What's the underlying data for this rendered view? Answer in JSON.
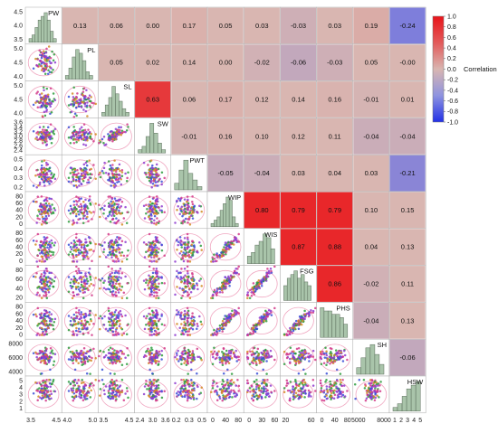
{
  "chart_data": {
    "type": "scatter-matrix",
    "variables": [
      "PW",
      "PL",
      "SL",
      "SW",
      "PWT",
      "WIP",
      "WIS",
      "FSG",
      "PHS",
      "SH",
      "HSW"
    ],
    "correlations": [
      [
        null,
        0.13,
        0.06,
        0.0,
        0.17,
        0.05,
        0.03,
        -0.03,
        0.03,
        0.19,
        -0.24
      ],
      [
        null,
        null,
        0.05,
        0.02,
        0.14,
        0.0,
        -0.02,
        -0.06,
        -0.03,
        0.05,
        -0.0
      ],
      [
        null,
        null,
        null,
        0.63,
        0.06,
        0.17,
        0.12,
        0.14,
        0.16,
        -0.01,
        0.01
      ],
      [
        null,
        null,
        null,
        null,
        -0.01,
        0.16,
        0.1,
        0.12,
        0.11,
        -0.04,
        -0.04
      ],
      [
        null,
        null,
        null,
        null,
        null,
        -0.05,
        -0.04,
        0.03,
        0.04,
        0.03,
        -0.21
      ],
      [
        null,
        null,
        null,
        null,
        null,
        null,
        0.8,
        0.79,
        0.79,
        0.1,
        0.15
      ],
      [
        null,
        null,
        null,
        null,
        null,
        null,
        null,
        0.87,
        0.88,
        0.04,
        0.13
      ],
      [
        null,
        null,
        null,
        null,
        null,
        null,
        null,
        null,
        0.86,
        -0.02,
        0.11
      ],
      [
        null,
        null,
        null,
        null,
        null,
        null,
        null,
        null,
        null,
        -0.04,
        0.13
      ],
      [
        null,
        null,
        null,
        null,
        null,
        null,
        null,
        null,
        null,
        null,
        -0.06
      ]
    ],
    "correlation_labels": [
      [
        null,
        "0.13",
        "0.06",
        "0.00",
        "0.17",
        "0.05",
        "0.03",
        "-0.03",
        "0.03",
        "0.19",
        "-0.24"
      ],
      [
        null,
        null,
        "0.05",
        "0.02",
        "0.14",
        "0.00",
        "-0.02",
        "-0.06",
        "-0.03",
        "0.05",
        "-0.00"
      ],
      [
        null,
        null,
        null,
        "0.63",
        "0.06",
        "0.17",
        "0.12",
        "0.14",
        "0.16",
        "-0.01",
        "0.01"
      ],
      [
        null,
        null,
        null,
        null,
        "-0.01",
        "0.16",
        "0.10",
        "0.12",
        "0.11",
        "-0.04",
        "-0.04"
      ],
      [
        null,
        null,
        null,
        null,
        null,
        "-0.05",
        "-0.04",
        "0.03",
        "0.04",
        "0.03",
        "-0.21"
      ],
      [
        null,
        null,
        null,
        null,
        null,
        null,
        "0.80",
        "0.79",
        "0.79",
        "0.10",
        "0.15"
      ],
      [
        null,
        null,
        null,
        null,
        null,
        null,
        null,
        "0.87",
        "0.88",
        "0.04",
        "0.13"
      ],
      [
        null,
        null,
        null,
        null,
        null,
        null,
        null,
        null,
        "0.86",
        "-0.02",
        "0.11"
      ],
      [
        null,
        null,
        null,
        null,
        null,
        null,
        null,
        null,
        null,
        "-0.04",
        "0.13"
      ],
      [
        null,
        null,
        null,
        null,
        null,
        null,
        null,
        null,
        null,
        null,
        "-0.06"
      ]
    ],
    "ranges": {
      "PW": [
        3.3,
        5.2
      ],
      "PL": [
        3.5,
        5.3
      ],
      "SL": [
        3.6,
        5.2
      ],
      "SW": [
        2.3,
        3.8
      ],
      "PWT": [
        0.15,
        0.5
      ],
      "WIP": [
        -5,
        90
      ],
      "WIS": [
        -5,
        80
      ],
      "FSG": [
        5,
        100
      ],
      "PHS": [
        -5,
        95
      ],
      "SH": [
        3000,
        9500
      ],
      "HSW": [
        0.5,
        5.5
      ]
    },
    "y_ticks": [
      [
        "4.5",
        "4.0",
        "3.5"
      ],
      [
        "5.0",
        "4.5",
        "4.0"
      ],
      [
        "5.0",
        "4.5",
        "4.0"
      ],
      [
        "3.6",
        "3.4",
        "3.2",
        "3.0",
        "2.8",
        "2.6",
        "2.4"
      ],
      [
        "0.5",
        "0.4",
        "0.3",
        "0.2"
      ],
      [
        "80",
        "60",
        "40",
        "20",
        "0"
      ],
      [
        "80",
        "60",
        "40",
        "20",
        "0"
      ],
      [
        "80",
        "60",
        "40",
        "20"
      ],
      [
        "80",
        "60",
        "40",
        "20",
        "0"
      ],
      [
        "8000",
        "6000",
        "4000"
      ],
      [
        "5",
        "4",
        "3",
        "2",
        "1"
      ]
    ],
    "x_ticks": [
      [
        "3.5",
        "4.5"
      ],
      [
        "4.0",
        "5.0"
      ],
      [
        "3.5",
        "4.5"
      ],
      [
        "2.4",
        "3.0",
        "3.6"
      ],
      [
        "0.2",
        "0.3",
        "0.5"
      ],
      [
        "0",
        "40",
        "80"
      ],
      [
        "0",
        "30",
        "60"
      ],
      [
        "20",
        "60"
      ],
      [
        "0",
        "40",
        "80"
      ],
      [
        "5000",
        "8000"
      ],
      [
        "1",
        "2",
        "3",
        "4",
        "5"
      ]
    ],
    "diag_hist": [
      [
        1,
        2,
        4,
        6,
        7,
        8,
        6,
        3,
        1
      ],
      [
        1,
        3,
        6,
        8,
        7,
        5,
        2,
        1
      ],
      [
        1,
        3,
        5,
        8,
        6,
        4,
        2,
        1
      ],
      [
        1,
        2,
        5,
        9,
        6,
        3,
        1
      ],
      [
        2,
        6,
        9,
        5,
        3,
        1
      ],
      [
        1,
        2,
        3,
        5,
        7,
        9,
        8,
        3,
        1
      ],
      [
        2,
        3,
        5,
        6,
        8,
        7,
        4
      ],
      [
        4,
        6,
        7,
        8,
        6,
        7,
        5,
        4
      ],
      [
        9,
        8,
        8,
        7,
        7,
        6,
        4
      ],
      [
        2,
        5,
        8,
        9,
        6,
        3
      ],
      [
        1,
        2,
        4,
        6,
        7,
        8
      ]
    ],
    "colorbar": {
      "title": "Correlation",
      "range": [
        -1.0,
        1.0
      ],
      "tick_labels": [
        "1.0",
        "0.8",
        "0.6",
        "0.4",
        "0.2",
        "0.0",
        "-0.2",
        "-0.4",
        "-0.6",
        "-0.8",
        "-1.0"
      ]
    },
    "colors": {
      "positive": "#e8272a",
      "neutral": "#d9b6b1",
      "negative": "#6f75e2",
      "hist_fill": "#a9c4aa",
      "hist_stroke": "#5a6d5a",
      "point_colors": [
        "#3a4fd6",
        "#d48a25",
        "#2e9c3e",
        "#d23a8a",
        "#8f3ccf"
      ],
      "ellipse": "#f0a6c0",
      "grid_line": "#aaaaaa"
    }
  }
}
